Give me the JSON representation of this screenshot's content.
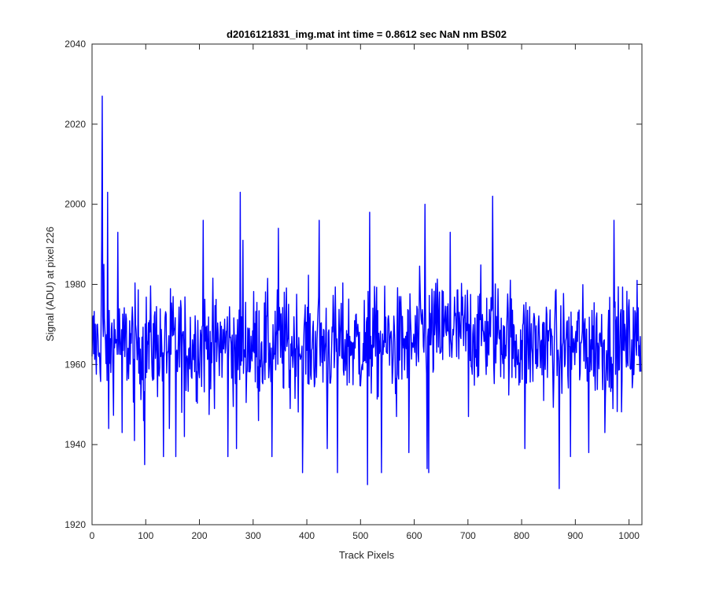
{
  "chart_data": {
    "type": "line",
    "title": "d2016121831_img.mat int time = 0.8612 sec  NaN nm BS02",
    "xlabel": "Track Pixels",
    "ylabel": "Signal (ADU) at pixel 226",
    "xlim": [
      0,
      1024
    ],
    "ylim": [
      1920,
      2040
    ],
    "xticks": [
      0,
      100,
      200,
      300,
      400,
      500,
      600,
      700,
      800,
      900,
      1000
    ],
    "yticks": [
      1920,
      1940,
      1960,
      1980,
      2000,
      2020,
      2040
    ],
    "grid": false,
    "line_color": "#0000ff",
    "series": [
      {
        "x": [
          0,
          15,
          18,
          19,
          20,
          22,
          25,
          28,
          29,
          31,
          35,
          48,
          56,
          79,
          96,
          98,
          133,
          144,
          156,
          172,
          207,
          228,
          253,
          269,
          276,
          281,
          310,
          335,
          347,
          369,
          392,
          423,
          438,
          457,
          513,
          517,
          539,
          567,
          590,
          620,
          624,
          627,
          667,
          701,
          746,
          806,
          870,
          891,
          925,
          955,
          972,
          1015,
          1024
        ],
        "y": [
          1962,
          1958,
          1991,
          2027,
          1972,
          1985,
          1966,
          1956,
          2003,
          1944,
          1958,
          1993,
          1943,
          1941,
          1946,
          1935,
          1937,
          1944,
          1937,
          1942,
          1996,
          1949,
          1937,
          1939,
          2003,
          1991,
          1946,
          1937,
          1994,
          1949,
          1933,
          1996,
          1939,
          1933,
          1930,
          1998,
          1933,
          1947,
          1938,
          2000,
          1934,
          1933,
          1993,
          1947,
          2002,
          1939,
          1929,
          1937,
          1938,
          1943,
          1996,
          1981,
          1944
        ],
        "note_points": "key visible extrema; remaining samples are dense noise between ~1940 and ~1990"
      }
    ],
    "noise": {
      "n_points": 1024,
      "mean": 1965,
      "spread": 11
    }
  }
}
